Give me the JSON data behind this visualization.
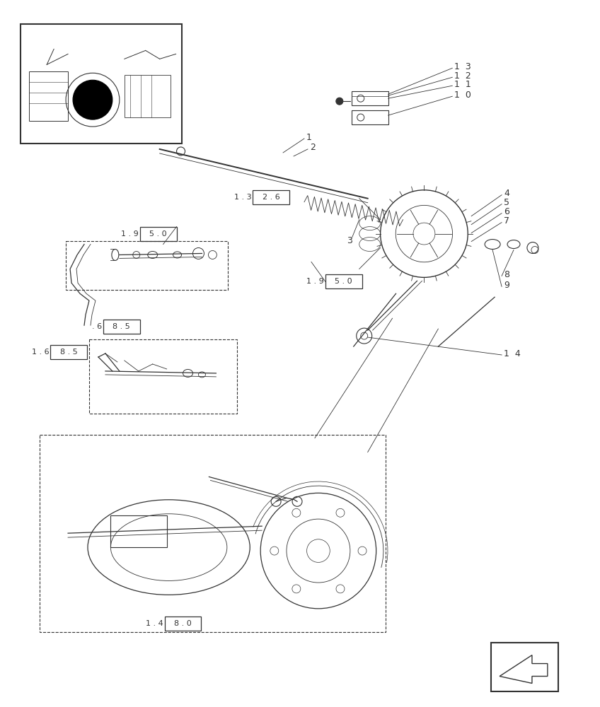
{
  "bg_color": "#ffffff",
  "line_color": "#333333",
  "fig_width": 8.48,
  "fig_height": 10.0
}
